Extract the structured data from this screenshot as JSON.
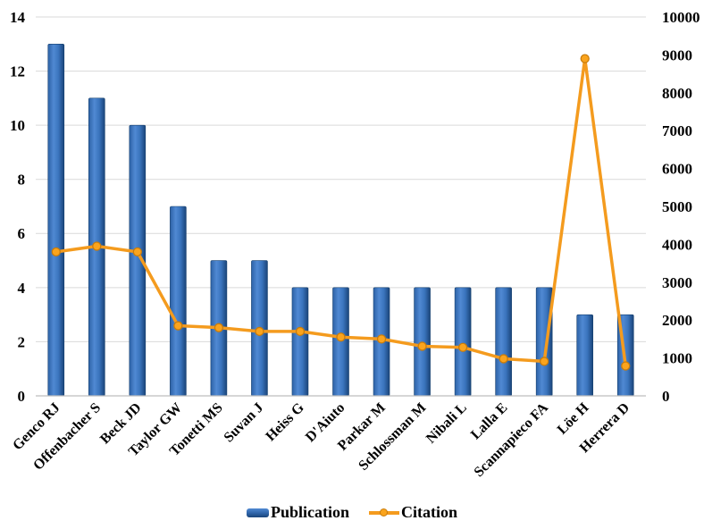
{
  "chart_data": {
    "type": "bar",
    "subtype": "combo-bar-line-dual-axis",
    "title": "",
    "xlabel": "",
    "ylabel_left": "",
    "ylabel_right": "",
    "categories": [
      "Genco RJ",
      "Offenbacher S",
      "Beck JD",
      "Taylor GW",
      "Tonetti MS",
      "Suvan J",
      "Heiss G",
      "D'Aiuto",
      "Parkar M",
      "Schlossman M",
      "Nibali L",
      "Lalla E",
      "Scannapieco FA",
      "Löe H",
      "Herrera D"
    ],
    "series": [
      {
        "name": "Publication",
        "type": "bar",
        "axis": "left",
        "values": [
          13,
          11,
          10,
          7,
          5,
          5,
          4,
          4,
          4,
          4,
          4,
          4,
          4,
          3,
          3
        ]
      },
      {
        "name": "Citation",
        "type": "line",
        "axis": "right",
        "values": [
          3800,
          3950,
          3800,
          1850,
          1800,
          1700,
          1700,
          1550,
          1500,
          1310,
          1280,
          980,
          910,
          8900,
          790
        ]
      }
    ],
    "left_axis": {
      "min": 0,
      "max": 14,
      "step": 2,
      "ticks": [
        0,
        2,
        4,
        6,
        8,
        10,
        12,
        14
      ]
    },
    "right_axis": {
      "min": 0,
      "max": 10000,
      "step": 1000,
      "ticks": [
        0,
        1000,
        2000,
        3000,
        4000,
        5000,
        6000,
        7000,
        8000,
        9000,
        10000
      ]
    },
    "grid": "horizontal-on",
    "legend_position": "bottom-center",
    "x_label_rotation_deg": 45,
    "colors": {
      "background": "#ffffff",
      "bar_gradient": [
        {
          "o": 0,
          "c": "#2d62a6"
        },
        {
          "o": 0.35,
          "c": "#5089d3"
        },
        {
          "o": 0.65,
          "c": "#3a74bd"
        },
        {
          "o": 1,
          "c": "#1a4479"
        }
      ],
      "bar_edge": "#16406f",
      "line": "#f49b1e",
      "marker_fill": "#faa41d",
      "marker_stroke": "#c97c0b",
      "gridline": "#d9d9d9",
      "axis_line": "#bdbdbd",
      "text": "#000000"
    }
  }
}
